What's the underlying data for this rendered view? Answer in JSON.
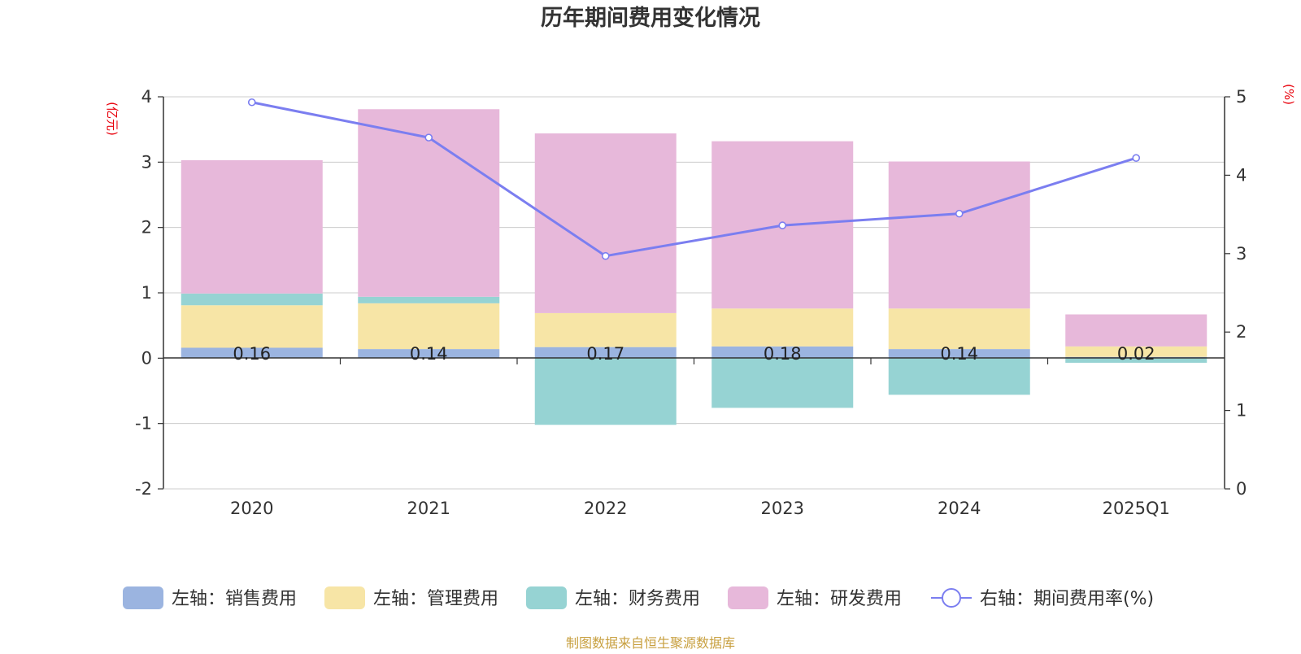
{
  "title": "历年期间费用变化情况",
  "source": "制图数据来自恒生聚源数据库",
  "colors": {
    "sales": "#9bb4e0",
    "admin": "#f7e5a6",
    "finance": "#96d3d3",
    "rd": "#e7b8da",
    "rate": "#7b7ef0",
    "axis": "#333333",
    "grid": "#cccccc",
    "unit": "#e8000b",
    "source": "#c8a040"
  },
  "chart_data": {
    "type": "bar",
    "title": "历年期间费用变化情况",
    "categories": [
      "2020",
      "2021",
      "2022",
      "2023",
      "2024",
      "2025Q1"
    ],
    "left_axis": {
      "unit": "(亿元)",
      "ylim": [
        -2,
        4
      ],
      "ticks": [
        "-2",
        "-1",
        "0",
        "1",
        "2",
        "3",
        "4"
      ]
    },
    "right_axis": {
      "unit": "(%)",
      "ylim": [
        0,
        5
      ],
      "ticks": [
        "0",
        "1",
        "2",
        "3",
        "4",
        "5"
      ]
    },
    "series": [
      {
        "key": "sales",
        "name": "左轴：销售费用",
        "type": "bar",
        "stack": true,
        "axis": "left",
        "values": [
          0.16,
          0.14,
          0.17,
          0.18,
          0.14,
          0.02
        ]
      },
      {
        "key": "admin",
        "name": "左轴：管理费用",
        "type": "bar",
        "stack": true,
        "axis": "left",
        "values": [
          0.65,
          0.7,
          0.52,
          0.58,
          0.62,
          0.16
        ]
      },
      {
        "key": "finance",
        "name": "左轴：财务费用",
        "type": "bar",
        "stack": true,
        "axis": "left",
        "values": [
          0.18,
          0.1,
          -1.02,
          -0.76,
          -0.56,
          -0.07
        ]
      },
      {
        "key": "rd",
        "name": "左轴：研发费用",
        "type": "bar",
        "stack": true,
        "axis": "left",
        "values": [
          2.04,
          2.87,
          2.75,
          2.56,
          2.25,
          0.49
        ]
      },
      {
        "key": "rate",
        "name": "右轴：期间费用率(%)",
        "type": "line",
        "axis": "right",
        "values": [
          4.93,
          4.48,
          2.97,
          3.36,
          3.51,
          4.22
        ]
      }
    ],
    "data_labels": [
      "0.16",
      "0.14",
      "0.17",
      "0.18",
      "0.14",
      "0.02"
    ],
    "grid": true,
    "legend_position": "bottom"
  }
}
